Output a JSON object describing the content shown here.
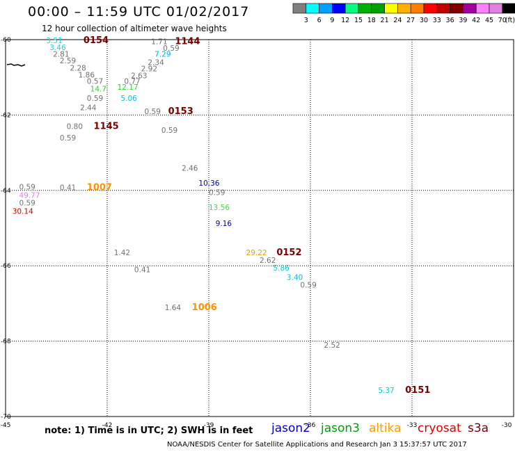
{
  "title": "00:00 – 11:59 UTC 01/02/2017",
  "subtitle": "12 hour collection of altimeter wave heights",
  "legend": {
    "unit": "(ft)",
    "colors": [
      "#7f7f7f",
      "#00ffff",
      "#00a0ff",
      "#0000ff",
      "#00ff7f",
      "#00b000",
      "#00a000",
      "#ffff00",
      "#ffb000",
      "#ff8000",
      "#ff0000",
      "#c00000",
      "#800000",
      "#a000a0",
      "#ff80ff",
      "#e080e0",
      "#000000"
    ],
    "ticks": [
      "3",
      "6",
      "9",
      "12",
      "15",
      "18",
      "21",
      "24",
      "27",
      "30",
      "33",
      "36",
      "39",
      "42",
      "45",
      "70"
    ]
  },
  "axes": {
    "lon_labels": [
      "-45",
      "-42",
      "-39",
      "-36",
      "-33",
      "-30"
    ],
    "lat_labels": [
      "-60",
      "-62",
      "-64",
      "-66",
      "-68",
      "-70"
    ]
  },
  "observations": [
    {
      "text": "3.51",
      "color": "#00e0e0",
      "lon": -43.8,
      "lat": -60.02
    },
    {
      "text": "0154",
      "color": "#7a0000",
      "lon": -42.7,
      "lat": -60.02,
      "time": true
    },
    {
      "text": "3.46",
      "color": "#00e0e0",
      "lon": -43.7,
      "lat": -60.2
    },
    {
      "text": "2.81",
      "color": "#707070",
      "lon": -43.6,
      "lat": -60.38
    },
    {
      "text": "2.59",
      "color": "#707070",
      "lon": -43.4,
      "lat": -60.55
    },
    {
      "text": "2.28",
      "color": "#707070",
      "lon": -43.1,
      "lat": -60.75
    },
    {
      "text": "1.86",
      "color": "#707070",
      "lon": -42.85,
      "lat": -60.93
    },
    {
      "text": "0.57",
      "color": "#707070",
      "lon": -42.6,
      "lat": -61.1
    },
    {
      "text": "14.7",
      "color": "#33cc33",
      "lon": -42.5,
      "lat": -61.3
    },
    {
      "text": "0.59",
      "color": "#707070",
      "lon": -42.6,
      "lat": -61.55
    },
    {
      "text": "2.44",
      "color": "#707070",
      "lon": -42.8,
      "lat": -61.8
    },
    {
      "text": "1.71",
      "color": "#707070",
      "lon": -40.7,
      "lat": -60.05
    },
    {
      "text": "1144",
      "color": "#7a0000",
      "lon": -40.0,
      "lat": -60.05,
      "time": true
    },
    {
      "text": "0.59",
      "color": "#707070",
      "lon": -40.35,
      "lat": -60.22
    },
    {
      "text": "7.29",
      "color": "#00b0d0",
      "lon": -40.6,
      "lat": -60.38
    },
    {
      "text": "2.34",
      "color": "#707070",
      "lon": -40.8,
      "lat": -60.6
    },
    {
      "text": "2.92",
      "color": "#707070",
      "lon": -41.0,
      "lat": -60.77
    },
    {
      "text": "2.63",
      "color": "#707070",
      "lon": -41.3,
      "lat": -60.95
    },
    {
      "text": "0.77",
      "color": "#707070",
      "lon": -41.5,
      "lat": -61.1
    },
    {
      "text": "12.17",
      "color": "#33cc33",
      "lon": -41.7,
      "lat": -61.25
    },
    {
      "text": "5.06",
      "color": "#00c0e0",
      "lon": -41.6,
      "lat": -61.55
    },
    {
      "text": "0.59",
      "color": "#707070",
      "lon": -40.9,
      "lat": -61.9
    },
    {
      "text": "0153",
      "color": "#7a0000",
      "lon": -40.2,
      "lat": -61.9,
      "time": true
    },
    {
      "text": "0.80",
      "color": "#707070",
      "lon": -43.2,
      "lat": -62.3
    },
    {
      "text": "1145",
      "color": "#7a0000",
      "lon": -42.4,
      "lat": -62.3,
      "time": true
    },
    {
      "text": "0.59",
      "color": "#707070",
      "lon": -43.4,
      "lat": -62.6
    },
    {
      "text": "0.59",
      "color": "#707070",
      "lon": -40.4,
      "lat": -62.4
    },
    {
      "text": "2.46",
      "color": "#707070",
      "lon": -39.8,
      "lat": -63.4
    },
    {
      "text": "10.36",
      "color": "#0000a0",
      "lon": -39.3,
      "lat": -63.8
    },
    {
      "text": "0.59",
      "color": "#707070",
      "lon": -39.0,
      "lat": -64.05
    },
    {
      "text": "0.59",
      "color": "#707070",
      "lon": -44.6,
      "lat": -63.9
    },
    {
      "text": "0.41",
      "color": "#707070",
      "lon": -43.4,
      "lat": -63.92
    },
    {
      "text": "1007",
      "color": "#ff9000",
      "lon": -42.6,
      "lat": -63.92,
      "time": true
    },
    {
      "text": "49.77",
      "color": "#e080e0",
      "lon": -44.6,
      "lat": -64.12
    },
    {
      "text": "0.59",
      "color": "#707070",
      "lon": -44.6,
      "lat": -64.33
    },
    {
      "text": "30.14",
      "color": "#d00000",
      "lon": -44.8,
      "lat": -64.55
    },
    {
      "text": "13.56",
      "color": "#40dd40",
      "lon": -39.0,
      "lat": -64.45
    },
    {
      "text": "9.16",
      "color": "#0000b0",
      "lon": -38.8,
      "lat": -64.87
    },
    {
      "text": "1.42",
      "color": "#707070",
      "lon": -41.8,
      "lat": -65.65
    },
    {
      "text": "29.22",
      "color": "#e0a000",
      "lon": -37.9,
      "lat": -65.65
    },
    {
      "text": "0152",
      "color": "#7a0000",
      "lon": -37.0,
      "lat": -65.65,
      "time": true
    },
    {
      "text": "2.62",
      "color": "#707070",
      "lon": -37.5,
      "lat": -65.85
    },
    {
      "text": "5.86",
      "color": "#00d0d0",
      "lon": -37.1,
      "lat": -66.05
    },
    {
      "text": "0.41",
      "color": "#707070",
      "lon": -41.2,
      "lat": -66.1
    },
    {
      "text": "3.40",
      "color": "#00c0e0",
      "lon": -36.7,
      "lat": -66.3
    },
    {
      "text": "0.59",
      "color": "#707070",
      "lon": -36.3,
      "lat": -66.5
    },
    {
      "text": "1.64",
      "color": "#707070",
      "lon": -40.3,
      "lat": -67.1
    },
    {
      "text": "1006",
      "color": "#ff9000",
      "lon": -39.5,
      "lat": -67.1,
      "time": true
    },
    {
      "text": "2.52",
      "color": "#707070",
      "lon": -35.6,
      "lat": -68.1
    },
    {
      "text": "5.37",
      "color": "#00d0d0",
      "lon": -34.0,
      "lat": -69.3
    },
    {
      "text": "0151",
      "color": "#7a0000",
      "lon": -33.2,
      "lat": -69.3,
      "time": true
    }
  ],
  "footer": {
    "note": "note:  1) Time is in UTC;  2) SWH is in feet",
    "satellites": [
      {
        "name": "jason2",
        "color": "#0000cc"
      },
      {
        "name": "jason3",
        "color": "#00a000"
      },
      {
        "name": "altika",
        "color": "#ff9900"
      },
      {
        "name": "cryosat",
        "color": "#dd0000"
      },
      {
        "name": "s3a",
        "color": "#7a0000"
      }
    ],
    "credit": "NOAA/NESDIS Center for Satellite Applications and Research    Jan  3 15:37:57 UTC 2017"
  }
}
